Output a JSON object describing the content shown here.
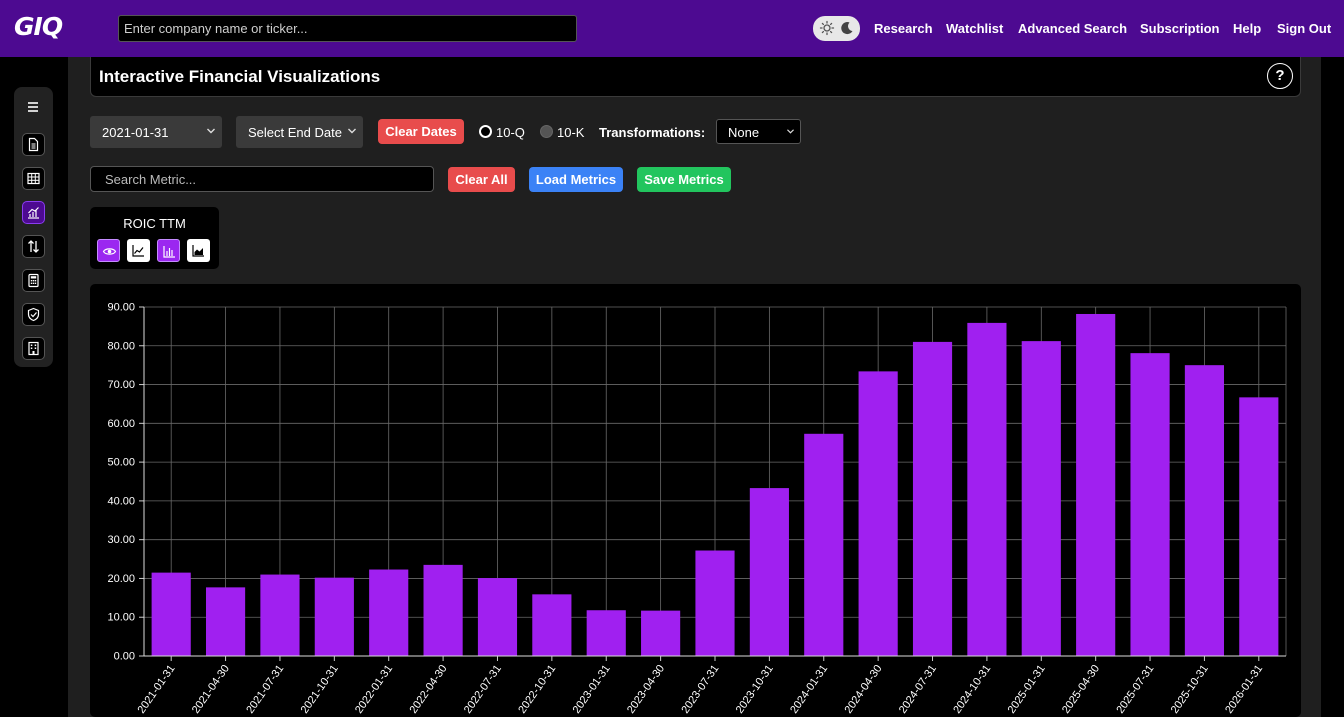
{
  "header": {
    "logo_text": "GIQ",
    "search_placeholder": "Enter company name or ticker...",
    "nav": [
      "Research",
      "Watchlist",
      "Advanced Search",
      "Subscription",
      "Help",
      "Sign Out"
    ],
    "background_color": "#4d0a91"
  },
  "page": {
    "title": "Interactive Financial Visualizations",
    "help_label": "?"
  },
  "sidebar": {
    "icons": [
      "menu-icon",
      "document-icon",
      "table-icon",
      "chart-icon",
      "sort-arrows-icon",
      "calculator-icon",
      "shield-icon",
      "building-icon"
    ],
    "active": "chart-icon"
  },
  "controls": {
    "start_date": "2021-01-31",
    "end_date_placeholder": "Select End Date",
    "clear_dates": "Clear Dates",
    "period_options": [
      "10-Q",
      "10-K"
    ],
    "period_selected": "10-Q",
    "transformations_label": "Transformations:",
    "transformation": "None",
    "metric_search_placeholder": "Search Metric...",
    "clear_all": "Clear All",
    "load_metrics": "Load Metrics",
    "save_metrics": "Save Metrics"
  },
  "metric_card": {
    "name": "ROIC TTM",
    "icons": [
      "eye-icon",
      "line-chart-icon",
      "bar-chart-icon",
      "area-chart-icon"
    ],
    "active_chart_type": "bar-chart-icon"
  },
  "colors": {
    "accent": "#a020f0",
    "red": "#e84c4c",
    "blue": "#3b82f6",
    "green": "#22c55e"
  },
  "chart_data": {
    "type": "bar",
    "categories": [
      "2021-01-31",
      "2021-04-30",
      "2021-07-31",
      "2021-10-31",
      "2022-01-31",
      "2022-04-30",
      "2022-07-31",
      "2022-10-31",
      "2023-01-31",
      "2023-04-30",
      "2023-07-31",
      "2023-10-31",
      "2024-01-31",
      "2024-04-30",
      "2024-07-31",
      "2024-10-31",
      "2025-01-31",
      "2025-04-30",
      "2025-07-31",
      "2025-10-31",
      "2026-01-31"
    ],
    "series": [
      {
        "name": "ROIC TTM",
        "values": [
          21.5,
          17.7,
          21.0,
          20.2,
          22.3,
          23.5,
          20.1,
          15.9,
          11.8,
          11.7,
          27.2,
          43.3,
          57.3,
          73.4,
          81.0,
          85.9,
          81.2,
          88.2,
          78.1,
          75.0,
          66.7
        ]
      }
    ],
    "ylim": [
      0,
      90
    ],
    "yticks": [
      "0.00",
      "10.00",
      "20.00",
      "30.00",
      "40.00",
      "50.00",
      "60.00",
      "70.00",
      "80.00",
      "90.00"
    ],
    "grid": true,
    "bar_color": "#a020f0"
  }
}
